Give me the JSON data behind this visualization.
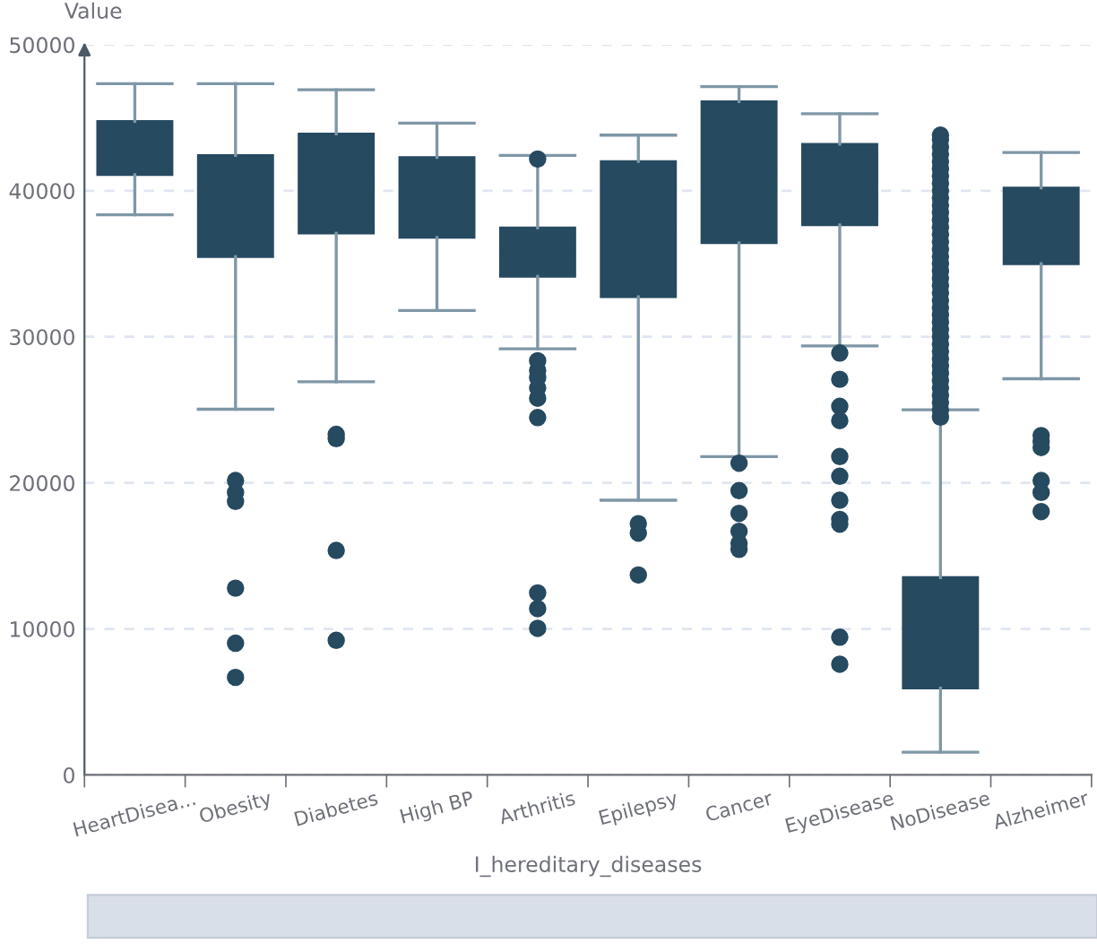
{
  "chart_data": {
    "type": "box",
    "ylabel": "Value",
    "xlabel": "I_hereditary_diseases",
    "categories": [
      "HeartDisea...",
      "Obesity",
      "Diabetes",
      "High BP",
      "Arthritis",
      "Epilepsy",
      "Cancer",
      "EyeDisease",
      "NoDisease",
      "Alzheimer"
    ],
    "color": "#264a60",
    "boxes": [
      {
        "low": 38360,
        "q1": 41100,
        "median": 43000,
        "q3": 44750,
        "high": 47330
      },
      {
        "low": 25040,
        "q1": 35490,
        "median": 39000,
        "q3": 42420,
        "high": 47330,
        "outliers": [
          20160,
          19340,
          18730,
          12790,
          9020,
          6680
        ]
      },
      {
        "low": 26920,
        "q1": 37090,
        "median": 40500,
        "q3": 43890,
        "high": 46920,
        "outliers": [
          23320,
          23030,
          15370,
          9220
        ]
      },
      {
        "low": 31800,
        "q1": 36800,
        "median": 39500,
        "q3": 42290,
        "high": 44630
      },
      {
        "low": 29180,
        "q1": 34140,
        "median": 35800,
        "q3": 37460,
        "high": 42420,
        "outliers": [
          42170,
          28360,
          27700,
          27200,
          26500,
          25800,
          24470,
          12460,
          11390,
          10040
        ]
      },
      {
        "low": 18810,
        "q1": 32740,
        "median": 37400,
        "q3": 42010,
        "high": 43810,
        "outliers": [
          17210,
          16560,
          13690
        ]
      },
      {
        "low": 21800,
        "q1": 36430,
        "median": 41300,
        "q3": 46100,
        "high": 47130,
        "outliers": [
          21350,
          19470,
          17910,
          16680,
          15860,
          15450
        ]
      },
      {
        "low": 29380,
        "q1": 37660,
        "median": 40400,
        "q3": 43190,
        "high": 45280,
        "outliers": [
          28890,
          27090,
          25240,
          24260,
          21800,
          20450,
          18810,
          17500,
          17170,
          9430,
          7580
        ]
      },
      {
        "low": 1560,
        "q1": 5940,
        "median": 9700,
        "q3": 13520,
        "high": 25000,
        "outliers": [
          24500,
          25000,
          25500,
          26000,
          26500,
          27000,
          27500,
          28000,
          28500,
          29000,
          29500,
          30000,
          30500,
          31000,
          31500,
          32000,
          32500,
          33000,
          33500,
          34000,
          34500,
          35000,
          35500,
          36000,
          36500,
          37000,
          37500,
          38000,
          38500,
          39000,
          39500,
          40000,
          40500,
          41000,
          41500,
          42000,
          42500,
          43000,
          43500,
          43810
        ]
      },
      {
        "low": 27130,
        "q1": 35000,
        "median": 37600,
        "q3": 40200,
        "high": 42620,
        "outliers": [
          23240,
          22830,
          22420,
          20160,
          19340,
          18030
        ]
      }
    ],
    "ylim": [
      0,
      50000
    ],
    "yticks": [
      0,
      10000,
      20000,
      30000,
      40000,
      50000
    ],
    "grid": "y"
  }
}
